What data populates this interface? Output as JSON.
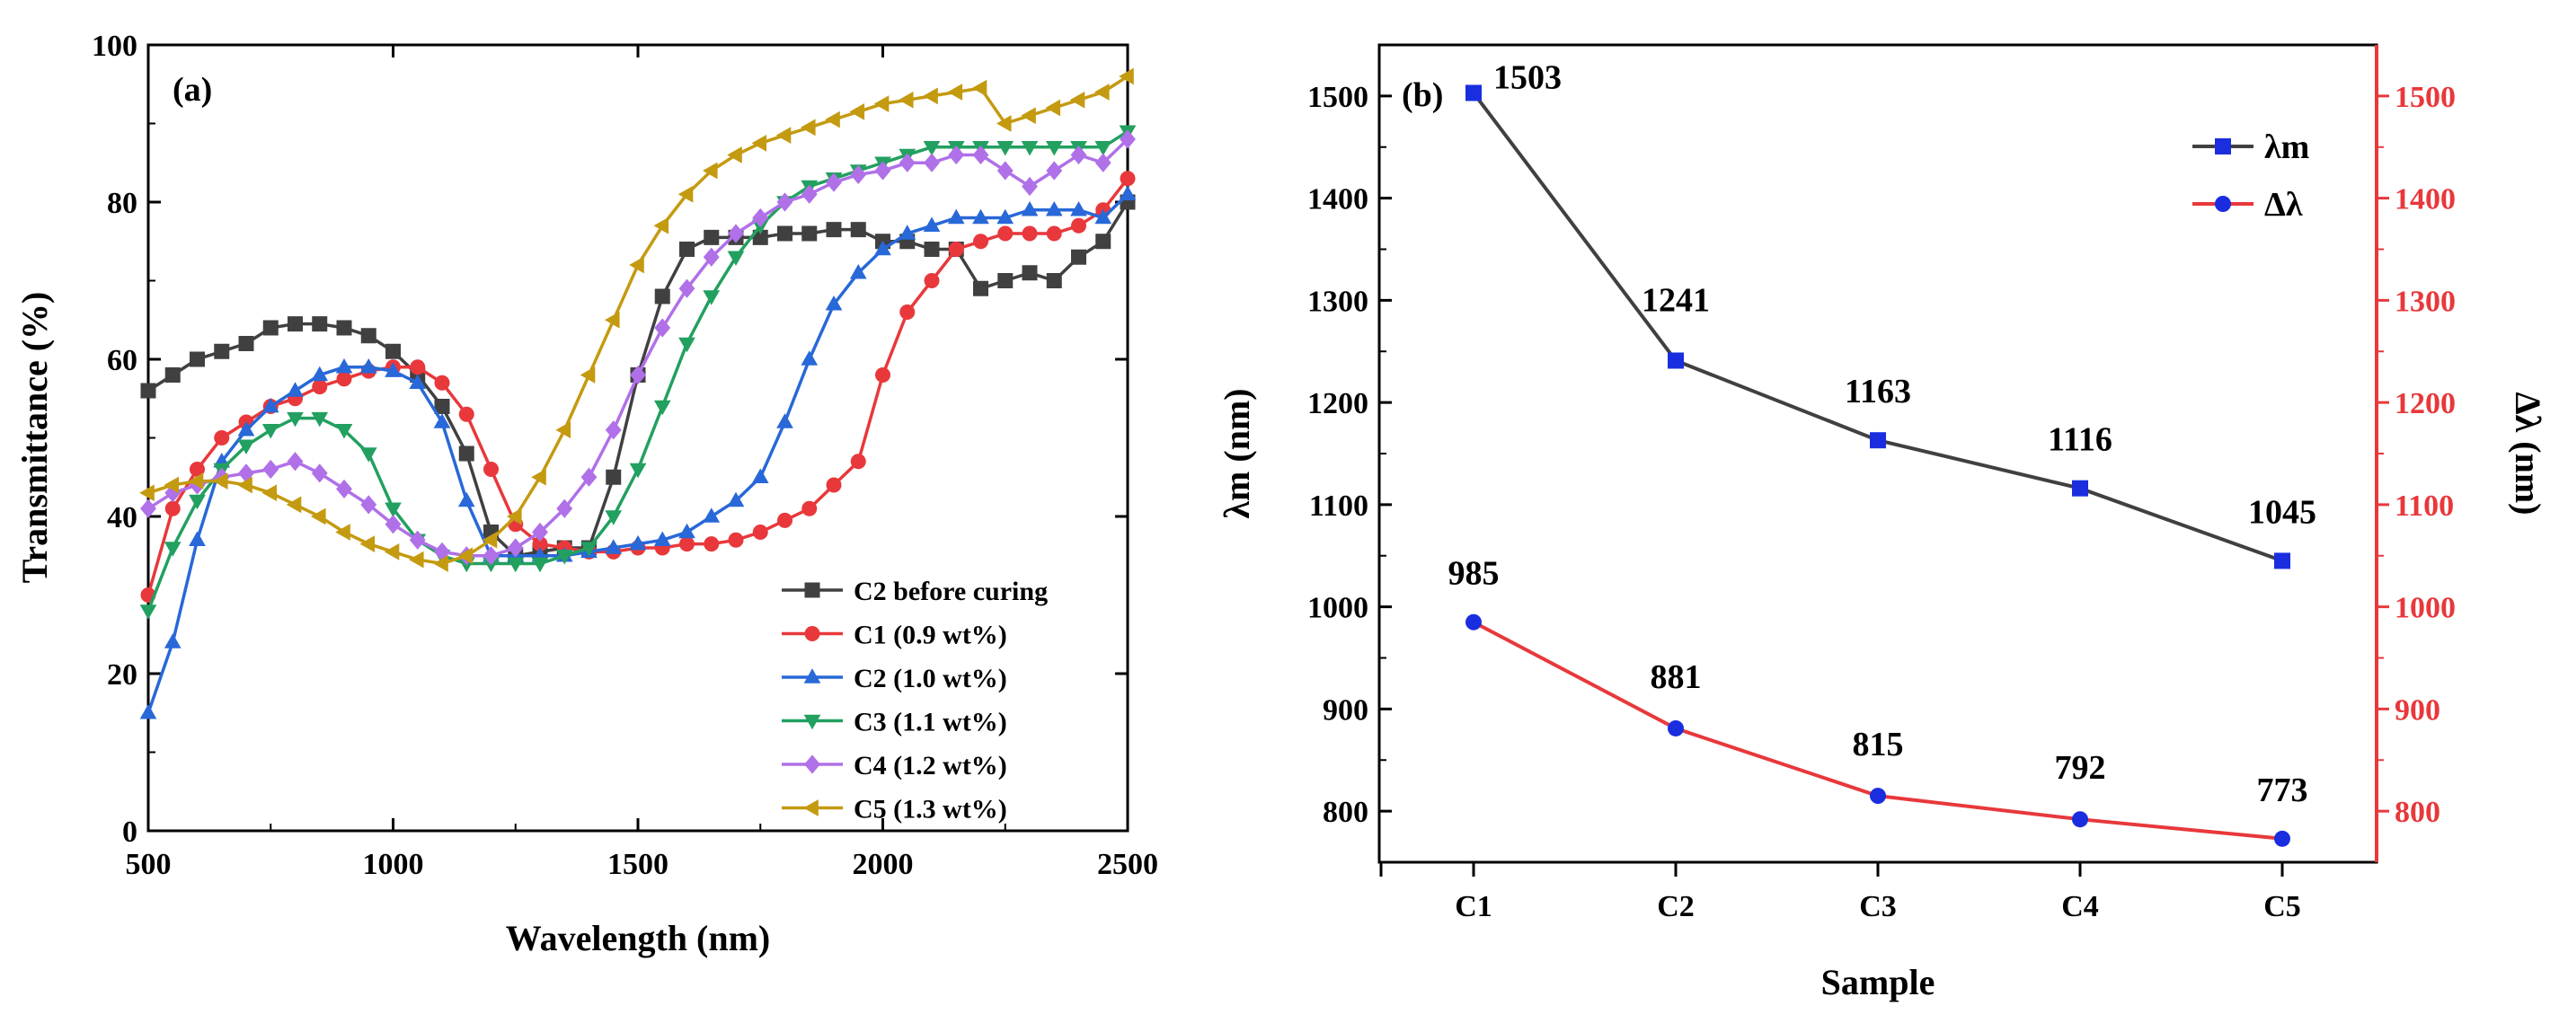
{
  "chart_data": [
    {
      "type": "line",
      "panel_label": "(a)",
      "xlabel": "Wavelength (nm)",
      "ylabel": "Transmittance (%)",
      "xlim": [
        500,
        2500
      ],
      "ylim": [
        0,
        100
      ],
      "xticks": [
        "500",
        "1000",
        "1500",
        "2000",
        "2500"
      ],
      "yticks": [
        "0",
        "20",
        "40",
        "60",
        "80",
        "100"
      ],
      "legend_position": "bottom-right",
      "grid": false,
      "series": [
        {
          "name": "C2 before curing",
          "color": "#404040",
          "marker": "square",
          "x": [
            500,
            550,
            600,
            650,
            700,
            750,
            800,
            850,
            900,
            950,
            1000,
            1050,
            1100,
            1150,
            1200,
            1250,
            1300,
            1350,
            1400,
            1450,
            1500,
            1550,
            1600,
            1650,
            1700,
            1750,
            1800,
            1850,
            1900,
            1950,
            2000,
            2050,
            2100,
            2150,
            2200,
            2250,
            2300,
            2350,
            2400,
            2450,
            2500
          ],
          "y": [
            56,
            58,
            60,
            61,
            62,
            64,
            64.5,
            64.5,
            64,
            63,
            61,
            58,
            54,
            48,
            38,
            35,
            35.5,
            36,
            36,
            45,
            58,
            68,
            74,
            75.5,
            75.5,
            75.5,
            76,
            76,
            76.5,
            76.5,
            75,
            75,
            74,
            74,
            69,
            70,
            71,
            70,
            73,
            75,
            80
          ]
        },
        {
          "name": "C1 (0.9 wt%)",
          "color": "#e8383b",
          "marker": "circle",
          "x": [
            500,
            550,
            600,
            650,
            700,
            750,
            800,
            850,
            900,
            950,
            1000,
            1050,
            1100,
            1150,
            1200,
            1250,
            1300,
            1350,
            1400,
            1450,
            1500,
            1550,
            1600,
            1650,
            1700,
            1750,
            1800,
            1850,
            1900,
            1950,
            2000,
            2050,
            2100,
            2150,
            2200,
            2250,
            2300,
            2350,
            2400,
            2450,
            2500
          ],
          "y": [
            30,
            41,
            46,
            50,
            52,
            54,
            55,
            56.5,
            57.5,
            58.5,
            59,
            59,
            57,
            53,
            46,
            39,
            36.5,
            36,
            35.5,
            35.5,
            36,
            36,
            36.5,
            36.5,
            37,
            38,
            39.5,
            41,
            44,
            47,
            58,
            66,
            70,
            74,
            75,
            76,
            76,
            76,
            77,
            79,
            83
          ]
        },
        {
          "name": "C2 (1.0 wt%)",
          "color": "#2868d8",
          "marker": "triangle-up",
          "x": [
            500,
            550,
            600,
            650,
            700,
            750,
            800,
            850,
            900,
            950,
            1000,
            1050,
            1100,
            1150,
            1200,
            1250,
            1300,
            1350,
            1400,
            1450,
            1500,
            1550,
            1600,
            1650,
            1700,
            1750,
            1800,
            1850,
            1900,
            1950,
            2000,
            2050,
            2100,
            2150,
            2200,
            2250,
            2300,
            2350,
            2400,
            2450,
            2500
          ],
          "y": [
            15,
            24,
            37,
            47,
            51,
            54,
            56,
            58,
            59,
            59,
            58.5,
            57,
            52,
            42,
            35,
            35,
            35,
            35,
            35.5,
            36,
            36.5,
            37,
            38,
            40,
            42,
            45,
            52,
            60,
            67,
            71,
            74,
            76,
            77,
            78,
            78,
            78,
            79,
            79,
            79,
            78,
            81
          ]
        },
        {
          "name": "C3 (1.1 wt%)",
          "color": "#22a060",
          "marker": "triangle-down",
          "x": [
            500,
            550,
            600,
            650,
            700,
            750,
            800,
            850,
            900,
            950,
            1000,
            1050,
            1100,
            1150,
            1200,
            1250,
            1300,
            1350,
            1400,
            1450,
            1500,
            1550,
            1600,
            1650,
            1700,
            1750,
            1800,
            1850,
            1900,
            1950,
            2000,
            2050,
            2100,
            2150,
            2200,
            2250,
            2300,
            2350,
            2400,
            2450,
            2500
          ],
          "y": [
            28,
            36,
            42,
            46,
            49,
            51,
            52.5,
            52.5,
            51,
            48,
            41,
            37,
            35,
            34,
            34,
            34,
            34,
            35,
            36,
            40,
            46,
            54,
            62,
            68,
            73,
            77,
            80,
            82,
            83,
            84,
            85,
            86,
            87,
            87,
            87,
            87,
            87,
            87,
            87,
            87,
            89
          ]
        },
        {
          "name": "C4 (1.2 wt%)",
          "color": "#b070e8",
          "marker": "diamond",
          "x": [
            500,
            550,
            600,
            650,
            700,
            750,
            800,
            850,
            900,
            950,
            1000,
            1050,
            1100,
            1150,
            1200,
            1250,
            1300,
            1350,
            1400,
            1450,
            1500,
            1550,
            1600,
            1650,
            1700,
            1750,
            1800,
            1850,
            1900,
            1950,
            2000,
            2050,
            2100,
            2150,
            2200,
            2250,
            2300,
            2350,
            2400,
            2450,
            2500
          ],
          "y": [
            41,
            43,
            44,
            45,
            45.5,
            46,
            47,
            45.5,
            43.5,
            41.5,
            39,
            37,
            35.5,
            35,
            35,
            36,
            38,
            41,
            45,
            51,
            58,
            64,
            69,
            73,
            76,
            78,
            80,
            81,
            82.5,
            83.5,
            84,
            85,
            85,
            86,
            86,
            84,
            82,
            84,
            86,
            85,
            88
          ]
        },
        {
          "name": "C5 (1.3 wt%)",
          "color": "#c49a10",
          "marker": "triangle-left",
          "x": [
            500,
            550,
            600,
            650,
            700,
            750,
            800,
            850,
            900,
            950,
            1000,
            1050,
            1100,
            1150,
            1200,
            1250,
            1300,
            1350,
            1400,
            1450,
            1500,
            1550,
            1600,
            1650,
            1700,
            1750,
            1800,
            1850,
            1900,
            1950,
            2000,
            2050,
            2100,
            2150,
            2200,
            2250,
            2300,
            2350,
            2400,
            2450,
            2500
          ],
          "y": [
            43,
            44,
            44.5,
            44.5,
            44,
            43,
            41.5,
            40,
            38,
            36.5,
            35.5,
            34.5,
            34,
            35,
            37,
            40,
            45,
            51,
            58,
            65,
            72,
            77,
            81,
            84,
            86,
            87.5,
            88.5,
            89.5,
            90.5,
            91.5,
            92.5,
            93,
            93.5,
            94,
            94.5,
            90,
            91,
            92,
            93,
            94,
            96
          ]
        }
      ]
    },
    {
      "type": "line",
      "panel_label": "(b)",
      "xlabel": "Sample",
      "ylabel": "λm (nm)",
      "ylabel_right": "Δλ (nm)",
      "categories": [
        "C1",
        "C2",
        "C3",
        "C4",
        "C5"
      ],
      "ylim": [
        750,
        1550
      ],
      "ylim_right": [
        750,
        1550
      ],
      "yticks": [
        "800",
        "900",
        "1000",
        "1100",
        "1200",
        "1300",
        "1400",
        "1500"
      ],
      "legend_position": "top-right",
      "grid": false,
      "series": [
        {
          "name": "λm",
          "color": "#404040",
          "marker_color": "#1a2ee0",
          "marker": "square",
          "axis": "left",
          "values": [
            1503,
            1241,
            1163,
            1116,
            1045
          ],
          "labels": [
            "1503",
            "1241",
            "1163",
            "1116",
            "1045"
          ]
        },
        {
          "name": "Δλ",
          "color": "#e8383b",
          "marker_color": "#1a2ee0",
          "marker": "circle",
          "axis": "left",
          "values": [
            985,
            881,
            815,
            792,
            773
          ],
          "labels": [
            "985",
            "881",
            "815",
            "792",
            "773"
          ]
        }
      ]
    }
  ]
}
